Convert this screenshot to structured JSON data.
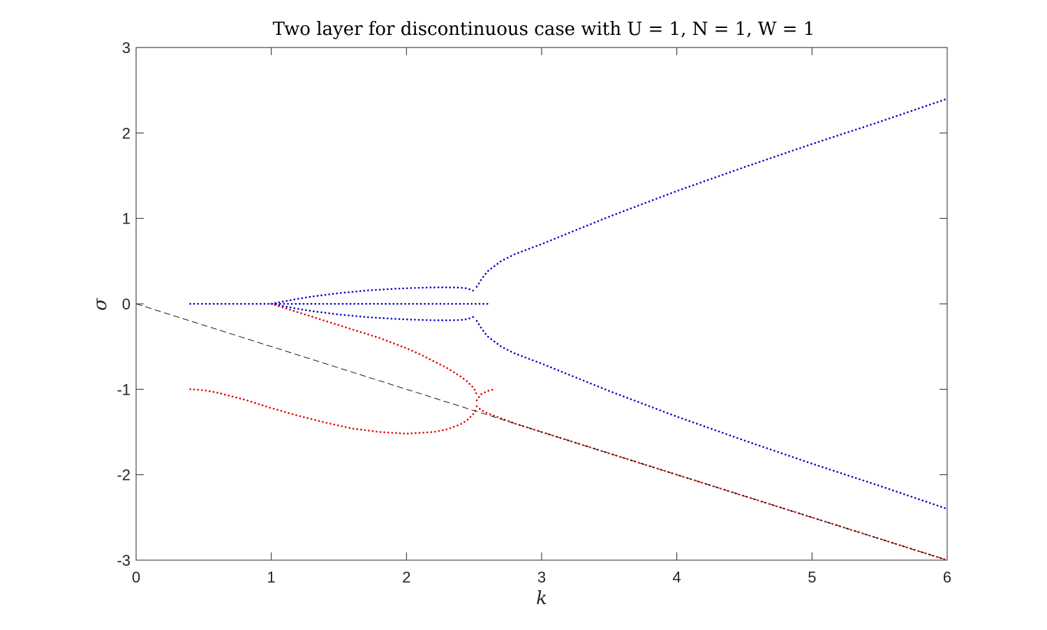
{
  "chart_data": {
    "type": "scatter",
    "title": "Two layer for discontinuous case with U = 1, N = 1, W = 1",
    "xlabel": "k",
    "ylabel": "σ",
    "xlim": [
      0,
      6
    ],
    "ylim": [
      -3,
      3
    ],
    "xticks": [
      "0",
      "1",
      "2",
      "3",
      "4",
      "5",
      "6"
    ],
    "yticks": [
      "-3",
      "-2",
      "-1",
      "0",
      "1",
      "2",
      "3"
    ],
    "grid": false,
    "legend": "none",
    "colors": {
      "blue": "#0000cc",
      "red": "#e00000",
      "dashed": "#000000"
    },
    "series": [
      {
        "color": "blue",
        "style": "dotted",
        "segments": [
          {
            "x": [
              0.4,
              1.0,
              1.1,
              1.2,
              1.3,
              1.4,
              1.5,
              1.6,
              1.7,
              1.8,
              1.9,
              2.0,
              2.1,
              2.2,
              2.3,
              2.4,
              2.5,
              2.6
            ],
            "y": [
              0,
              0,
              0,
              0,
              0,
              0,
              0,
              0,
              0,
              0,
              0,
              0,
              0,
              0,
              0,
              0,
              0,
              0
            ]
          },
          {
            "x": [
              1.0,
              1.1,
              1.2,
              1.3,
              1.4,
              1.5,
              1.6,
              1.7,
              1.8,
              1.9,
              2.0,
              2.1,
              2.2,
              2.3,
              2.4,
              2.45,
              2.5
            ],
            "y": [
              0,
              0.03,
              0.06,
              0.085,
              0.105,
              0.125,
              0.14,
              0.155,
              0.165,
              0.175,
              0.182,
              0.188,
              0.192,
              0.193,
              0.19,
              0.18,
              0.15
            ]
          },
          {
            "x": [
              1.0,
              1.1,
              1.2,
              1.3,
              1.4,
              1.5,
              1.6,
              1.7,
              1.8,
              1.9,
              2.0,
              2.1,
              2.2,
              2.3,
              2.4,
              2.45,
              2.5
            ],
            "y": [
              0,
              -0.03,
              -0.06,
              -0.085,
              -0.105,
              -0.125,
              -0.14,
              -0.155,
              -0.165,
              -0.175,
              -0.182,
              -0.188,
              -0.192,
              -0.193,
              -0.19,
              -0.18,
              -0.15
            ]
          },
          {
            "x": [
              2.52,
              2.56,
              2.6,
              2.7,
              2.8,
              3.0,
              3.5,
              4.0,
              4.5,
              5.0,
              5.5,
              6.0
            ],
            "y": [
              0.2,
              0.3,
              0.38,
              0.5,
              0.58,
              0.7,
              1.02,
              1.32,
              1.6,
              1.87,
              2.13,
              2.4
            ]
          },
          {
            "x": [
              2.52,
              2.56,
              2.6,
              2.7,
              2.8,
              3.0,
              3.5,
              4.0,
              4.5,
              5.0,
              5.5,
              6.0
            ],
            "y": [
              -0.2,
              -0.3,
              -0.38,
              -0.5,
              -0.58,
              -0.7,
              -1.02,
              -1.32,
              -1.6,
              -1.87,
              -2.13,
              -2.4
            ]
          }
        ]
      },
      {
        "color": "red",
        "style": "dotted",
        "segments": [
          {
            "x": [
              1.0,
              1.1,
              1.2,
              1.3,
              1.4,
              1.5,
              1.6,
              1.7,
              1.8,
              1.9,
              2.0,
              2.1,
              2.2,
              2.3,
              2.4,
              2.45,
              2.5,
              2.52
            ],
            "y": [
              0,
              -0.05,
              -0.1,
              -0.15,
              -0.2,
              -0.25,
              -0.3,
              -0.35,
              -0.4,
              -0.46,
              -0.52,
              -0.59,
              -0.67,
              -0.75,
              -0.85,
              -0.91,
              -0.99,
              -1.06
            ]
          },
          {
            "x": [
              0.4,
              0.5,
              0.6,
              0.7,
              0.8,
              0.9,
              1.0,
              1.2,
              1.4,
              1.6,
              1.8,
              2.0,
              2.2,
              2.3,
              2.4,
              2.45,
              2.5,
              2.52
            ],
            "y": [
              -1.0,
              -1.01,
              -1.04,
              -1.08,
              -1.12,
              -1.17,
              -1.22,
              -1.31,
              -1.39,
              -1.46,
              -1.5,
              -1.52,
              -1.5,
              -1.47,
              -1.41,
              -1.36,
              -1.28,
              -1.22
            ]
          },
          {
            "x": [
              2.52,
              2.55,
              2.6,
              2.65
            ],
            "y": [
              -1.13,
              -1.06,
              -1.02,
              -1.0
            ]
          },
          {
            "x": [
              2.52,
              2.55,
              2.6,
              2.7,
              2.8,
              3.0,
              3.5,
              4.0,
              4.5,
              5.0,
              5.5,
              6.0
            ],
            "y": [
              -1.2,
              -1.24,
              -1.28,
              -1.34,
              -1.4,
              -1.5,
              -1.75,
              -2.0,
              -2.25,
              -2.5,
              -2.75,
              -3.0
            ]
          }
        ]
      },
      {
        "color": "dashed",
        "style": "dashed",
        "segments": [
          {
            "x": [
              0,
              6
            ],
            "y": [
              0,
              -3
            ]
          }
        ]
      }
    ]
  }
}
